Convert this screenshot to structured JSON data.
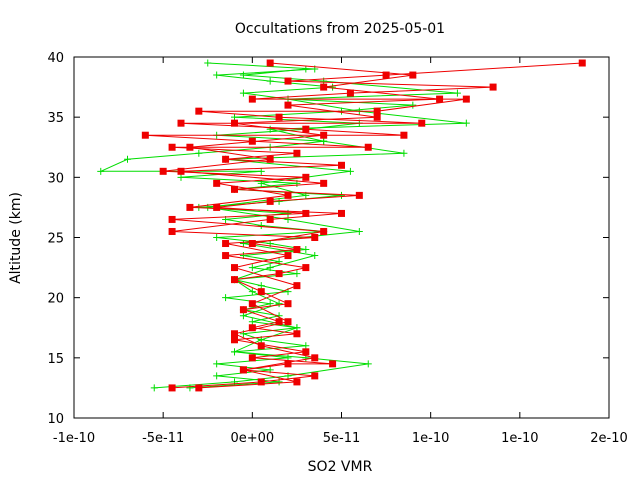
{
  "chart_data": {
    "type": "line",
    "title": "Occultations from 2025-05-01",
    "xlabel": "SO2 VMR",
    "ylabel": "Altitude (km)",
    "xlim": [
      -1e-10,
      2e-10
    ],
    "ylim": [
      10,
      40
    ],
    "x_ticks": [
      -1e-10,
      -5e-11,
      0,
      5e-11,
      1e-10,
      1.5e-10,
      2e-10
    ],
    "x_tick_labels": [
      "-1e-10",
      "-5e-11",
      "0e+00",
      "5e-11",
      "1e-10",
      "1e-10",
      "2e-10"
    ],
    "y_ticks": [
      10,
      15,
      20,
      25,
      30,
      35,
      40
    ],
    "y_tick_labels": [
      "10",
      "15",
      "20",
      "25",
      "30",
      "35",
      "40"
    ],
    "grid": false,
    "legend": "none",
    "series": [
      {
        "marker": "cross",
        "color": "#00dd00",
        "points": [
          [
            -3.5e-11,
            12.5
          ],
          [
            1.5e-11,
            13.0
          ],
          [
            -2e-11,
            13.5
          ],
          [
            1e-11,
            14.0
          ],
          [
            -2e-11,
            14.5
          ],
          [
            2e-11,
            15.0
          ],
          [
            -1e-11,
            15.5
          ],
          [
            3e-11,
            16.0
          ],
          [
            5e-12,
            16.5
          ],
          [
            -5e-12,
            17.0
          ],
          [
            2.5e-11,
            17.5
          ],
          [
            0.0,
            18.0
          ],
          [
            1.5e-11,
            18.5
          ],
          [
            -5e-12,
            19.0
          ],
          [
            1e-11,
            19.5
          ],
          [
            -1.5e-11,
            20.0
          ],
          [
            2e-11,
            20.5
          ],
          [
            5e-12,
            21.0
          ],
          [
            -1e-11,
            21.5
          ],
          [
            2.5e-11,
            22.0
          ],
          [
            0.0,
            22.5
          ],
          [
            1.5e-11,
            23.0
          ],
          [
            -5e-12,
            23.5
          ],
          [
            3e-11,
            24.0
          ],
          [
            1e-11,
            24.5
          ],
          [
            -2e-11,
            25.0
          ],
          [
            4e-11,
            25.5
          ],
          [
            5e-12,
            26.0
          ],
          [
            -1.5e-11,
            26.5
          ],
          [
            2e-11,
            27.0
          ],
          [
            -3e-11,
            27.5
          ],
          [
            1.5e-11,
            28.0
          ],
          [
            5e-11,
            28.5
          ],
          [
            -1e-11,
            29.0
          ],
          [
            2.5e-11,
            29.5
          ],
          [
            -4e-11,
            30.0
          ],
          [
            5e-12,
            30.5
          ],
          [
            -8.5e-11,
            30.5
          ],
          [
            -7e-11,
            31.5
          ],
          [
            -3e-11,
            32.0
          ],
          [
            1e-11,
            32.5
          ],
          [
            4e-11,
            33.0
          ],
          [
            -2e-11,
            33.5
          ],
          [
            3e-11,
            34.0
          ],
          [
            6e-11,
            34.5
          ],
          [
            -1e-11,
            35.0
          ],
          [
            5e-11,
            35.5
          ],
          [
            9e-11,
            36.0
          ],
          [
            2e-11,
            36.5
          ],
          [
            -5e-12,
            37.0
          ],
          [
            4.5e-11,
            37.5
          ],
          [
            1e-11,
            38.0
          ],
          [
            -2e-11,
            38.5
          ],
          [
            3.5e-11,
            39.0
          ],
          [
            -2.5e-11,
            39.5
          ]
        ]
      },
      {
        "marker": "cross",
        "color": "#00dd00",
        "points": [
          [
            -5.5e-11,
            12.5
          ],
          [
            -1e-11,
            13.0
          ],
          [
            2e-11,
            13.5
          ],
          [
            6.5e-11,
            14.5
          ],
          [
            3e-11,
            15.0
          ],
          [
            -1e-11,
            15.5
          ],
          [
            5e-12,
            16.5
          ],
          [
            2.5e-11,
            17.5
          ],
          [
            -5e-12,
            18.5
          ],
          [
            1.5e-11,
            19.5
          ],
          [
            0.0,
            20.5
          ],
          [
            -1e-11,
            21.5
          ],
          [
            1e-11,
            22.5
          ],
          [
            3.5e-11,
            23.5
          ],
          [
            -5e-12,
            24.5
          ],
          [
            6e-11,
            25.5
          ],
          [
            2e-11,
            26.5
          ],
          [
            -2.5e-11,
            27.5
          ],
          [
            3e-11,
            28.5
          ],
          [
            5e-12,
            29.5
          ],
          [
            5.5e-11,
            30.5
          ],
          [
            -1.5e-11,
            31.5
          ],
          [
            8.5e-11,
            32.0
          ],
          [
            4e-11,
            33.0
          ],
          [
            1e-11,
            34.0
          ],
          [
            1.2e-10,
            34.5
          ],
          [
            6e-11,
            35.5
          ],
          [
            2e-11,
            36.5
          ],
          [
            1.15e-10,
            37.0
          ],
          [
            4e-11,
            38.0
          ],
          [
            -5e-12,
            38.5
          ],
          [
            3e-11,
            39.0
          ]
        ]
      },
      {
        "marker": "square",
        "color": "#ee0000",
        "points": [
          [
            -4.5e-11,
            12.5
          ],
          [
            5e-12,
            13.0
          ],
          [
            3.5e-11,
            13.5
          ],
          [
            -5e-12,
            14.0
          ],
          [
            2e-11,
            14.5
          ],
          [
            4.5e-11,
            14.5
          ],
          [
            0.0,
            15.0
          ],
          [
            3e-11,
            15.5
          ],
          [
            -1e-11,
            16.5
          ],
          [
            2.5e-11,
            17.0
          ],
          [
            0.0,
            17.5
          ],
          [
            1.5e-11,
            18.0
          ],
          [
            -5e-12,
            19.0
          ],
          [
            2e-11,
            19.5
          ],
          [
            5e-12,
            20.5
          ],
          [
            -1e-11,
            21.5
          ],
          [
            1.5e-11,
            22.0
          ],
          [
            3e-11,
            22.5
          ],
          [
            -1.5e-11,
            23.5
          ],
          [
            2.5e-11,
            24.0
          ],
          [
            0.0,
            24.5
          ],
          [
            4e-11,
            25.5
          ],
          [
            -4.5e-11,
            26.5
          ],
          [
            3e-11,
            27.0
          ],
          [
            -2e-11,
            27.5
          ],
          [
            1e-11,
            28.0
          ],
          [
            6e-11,
            28.5
          ],
          [
            -1e-11,
            29.0
          ],
          [
            4e-11,
            29.5
          ],
          [
            -4e-11,
            30.5
          ],
          [
            5e-11,
            31.0
          ],
          [
            -1.5e-11,
            31.5
          ],
          [
            2.5e-11,
            32.0
          ],
          [
            -4.5e-11,
            32.5
          ],
          [
            6.5e-11,
            32.5
          ],
          [
            0.0,
            33.0
          ],
          [
            -6e-11,
            33.5
          ],
          [
            8.5e-11,
            33.5
          ],
          [
            3e-11,
            34.0
          ],
          [
            -4e-11,
            34.5
          ],
          [
            9.5e-11,
            34.5
          ],
          [
            1.5e-11,
            35.0
          ],
          [
            -3e-11,
            35.5
          ],
          [
            7e-11,
            35.5
          ],
          [
            1.2e-10,
            36.5
          ],
          [
            0.0,
            36.5
          ],
          [
            5.5e-11,
            37.0
          ],
          [
            1.35e-10,
            37.5
          ],
          [
            2e-11,
            38.0
          ],
          [
            7.5e-11,
            38.5
          ],
          [
            1.85e-10,
            39.5
          ]
        ]
      },
      {
        "marker": "square",
        "color": "#ee0000",
        "points": [
          [
            -3e-11,
            12.5
          ],
          [
            2.5e-11,
            13.0
          ],
          [
            -5e-12,
            14.0
          ],
          [
            3.5e-11,
            15.0
          ],
          [
            5e-12,
            16.0
          ],
          [
            -1e-11,
            17.0
          ],
          [
            2e-11,
            18.0
          ],
          [
            0.0,
            19.5
          ],
          [
            2.5e-11,
            21.0
          ],
          [
            -1e-11,
            22.5
          ],
          [
            2e-11,
            23.5
          ],
          [
            -1.5e-11,
            24.5
          ],
          [
            3.5e-11,
            25.0
          ],
          [
            -4.5e-11,
            25.5
          ],
          [
            1e-11,
            26.5
          ],
          [
            5e-11,
            27.0
          ],
          [
            -3.5e-11,
            27.5
          ],
          [
            2e-11,
            28.5
          ],
          [
            -2e-11,
            29.5
          ],
          [
            3e-11,
            30.0
          ],
          [
            -5e-11,
            30.5
          ],
          [
            1e-11,
            31.5
          ],
          [
            -3.5e-11,
            32.5
          ],
          [
            4e-11,
            33.5
          ],
          [
            -1e-11,
            34.5
          ],
          [
            7e-11,
            35.0
          ],
          [
            2e-11,
            36.0
          ],
          [
            1.05e-10,
            36.5
          ],
          [
            4e-11,
            37.5
          ],
          [
            9e-11,
            38.5
          ],
          [
            1e-11,
            39.5
          ]
        ]
      }
    ]
  }
}
